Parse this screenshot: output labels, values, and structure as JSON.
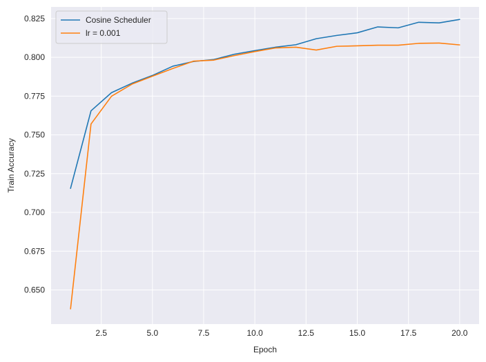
{
  "chart_data": {
    "type": "line",
    "title": "",
    "xlabel": "Epoch",
    "ylabel": "Train Accuracy",
    "x": [
      1,
      2,
      3,
      4,
      5,
      6,
      7,
      8,
      9,
      10,
      11,
      12,
      13,
      14,
      15,
      16,
      17,
      18,
      19,
      20
    ],
    "xlim": [
      0.05,
      20.95
    ],
    "ylim": [
      0.628,
      0.8325
    ],
    "xticks": [
      2.5,
      5.0,
      7.5,
      10.0,
      12.5,
      15.0,
      17.5,
      20.0
    ],
    "xtick_labels": [
      "2.5",
      "5.0",
      "7.5",
      "10.0",
      "12.5",
      "15.0",
      "17.5",
      "20.0"
    ],
    "yticks": [
      0.65,
      0.675,
      0.7,
      0.725,
      0.75,
      0.775,
      0.8,
      0.825
    ],
    "ytick_labels": [
      "0.650",
      "0.675",
      "0.700",
      "0.725",
      "0.750",
      "0.775",
      "0.800",
      "0.825"
    ],
    "grid": true,
    "legend_position": "top-left",
    "background_color": "#eaeaf2",
    "grid_color": "#ffffff",
    "series": [
      {
        "name": "Cosine Scheduler",
        "color": "#1f77b4",
        "values": [
          0.7155,
          0.7655,
          0.7772,
          0.7833,
          0.7883,
          0.7943,
          0.7973,
          0.7986,
          0.802,
          0.8043,
          0.8065,
          0.8081,
          0.812,
          0.8141,
          0.8158,
          0.8196,
          0.819,
          0.8226,
          0.8222,
          0.8244
        ]
      },
      {
        "name": "lr = 0.001",
        "color": "#ff7f0e",
        "values": [
          0.6378,
          0.757,
          0.7749,
          0.7827,
          0.7878,
          0.7928,
          0.7975,
          0.7982,
          0.8011,
          0.8037,
          0.806,
          0.8065,
          0.8047,
          0.8071,
          0.8074,
          0.8078,
          0.8078,
          0.809,
          0.8092,
          0.808
        ]
      }
    ]
  }
}
